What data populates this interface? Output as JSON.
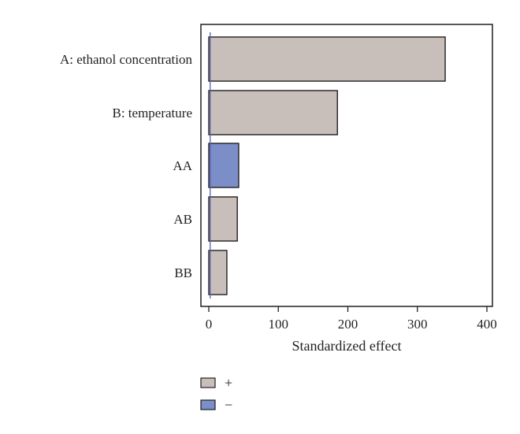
{
  "chart_data": {
    "type": "bar",
    "orientation": "horizontal",
    "categories": [
      "A: ethanol concentration",
      "B: temperature",
      "AA",
      "AB",
      "BB"
    ],
    "values": [
      340,
      185,
      43,
      41,
      26
    ],
    "signs": [
      "+",
      "+",
      "−",
      "+",
      "+"
    ],
    "xlabel": "Standardized effect",
    "xlim": [
      0,
      400
    ],
    "xticks": [
      0,
      100,
      200,
      300,
      400
    ],
    "reference_line_value": 2,
    "grid": false,
    "legend": {
      "placement": "bottom-left",
      "entries": [
        {
          "sign": "+",
          "label": "+",
          "color": "#c8bfbb"
        },
        {
          "sign": "−",
          "label": "−",
          "color": "#7b8ec8"
        }
      ]
    },
    "colors": {
      "positive": "#c8bfbb",
      "negative": "#7b8ec8",
      "reference_line": "#5a5fb0",
      "border": "#231f20"
    }
  }
}
